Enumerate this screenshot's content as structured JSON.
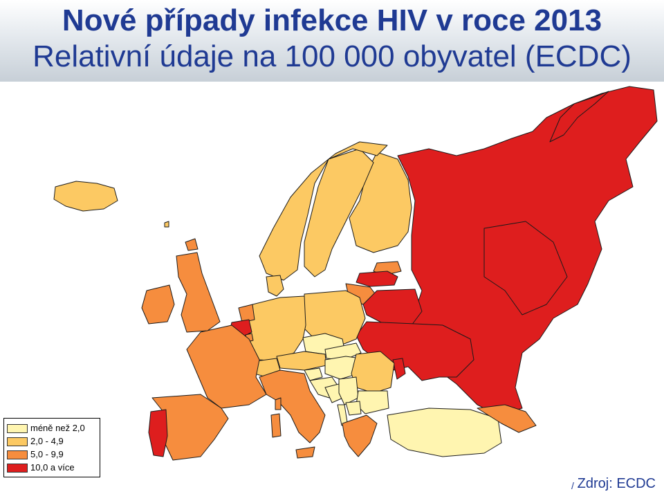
{
  "header": {
    "title_line1": "Nové případy infekce HIV v roce 2013",
    "title_line2": "Relativní údaje na 100 000 obyvatel (ECDC)"
  },
  "colors": {
    "lt2": "#fff5b0",
    "c2_49": "#fcc963",
    "c5_99": "#f68d3e",
    "ge10": "#de1e1e",
    "border": "#1a1a1a"
  },
  "legend": {
    "items": [
      {
        "label": "méně než 2,0",
        "color": "#fff5b0"
      },
      {
        "label": "2,0 - 4,9",
        "color": "#fcc963"
      },
      {
        "label": "5,0 - 9,9",
        "color": "#f68d3e"
      },
      {
        "label": "10,0 a více",
        "color": "#de1e1e"
      }
    ]
  },
  "source": {
    "text": "Zdroj: ECDC",
    "mark": "/"
  }
}
